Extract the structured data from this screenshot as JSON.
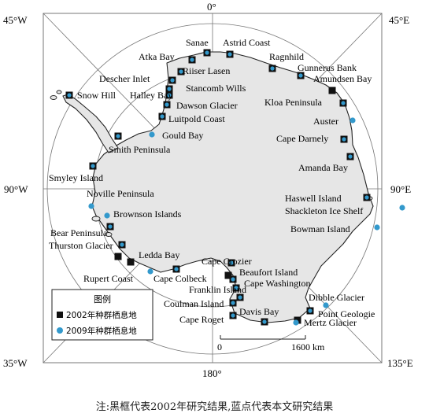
{
  "corners": {
    "tl": "45°W",
    "tr": "45°E",
    "bl": "35°W",
    "br": "135°E",
    "top": "0°",
    "bottom": "180°",
    "left": "90°W",
    "right": "90°E"
  },
  "legend": {
    "title": "图例",
    "items": [
      {
        "label": "2002年种群栖息地",
        "symbol": "square",
        "color": "#111111"
      },
      {
        "label": "2009年种群栖息地",
        "symbol": "circle",
        "color": "#3399cc"
      }
    ]
  },
  "scale": {
    "start": "0",
    "end": "1600 km"
  },
  "caption": "注:黑框代表2002年研究结果,蓝点代表本文研究结果",
  "colors": {
    "land": "#e6e6e6",
    "coast": "#222222",
    "grid": "#777777",
    "blue": "#3399cc",
    "black": "#111111"
  },
  "places": [
    "Sanae",
    "Astrid Coast",
    "Atka Bay",
    "Riiser Lasen",
    "Ragnhild",
    "Gunnerus Bank",
    "Descher Inlet",
    "Amundsen Bay",
    "Stancomb Wills",
    "Snow Hill",
    "Halley Bay",
    "Kloa Peninsula",
    "Dawson Glacier",
    "Luitpold Coast",
    "Auster",
    "Gould Bay",
    "Cape Darnely",
    "Smith Peninsula",
    "Amanda Bay",
    "Smyley Island",
    "Noville Peninsula",
    "Haswell Island",
    "Brownson Islands",
    "Shackleton Ice Shelf",
    "Bear Peninsula",
    "Bowman Island",
    "Thurston Glacier",
    "Ledda Bay",
    "Cape Crozier",
    "Rupert Coast",
    "Cape Colbeck",
    "Beaufort Island",
    "Cape Washington",
    "Franklin Island",
    "Coulman Island",
    "Dibble Glacier",
    "Davis Bay",
    "Point Geologie",
    "Cape Roget",
    "Mertz Glacier"
  ]
}
